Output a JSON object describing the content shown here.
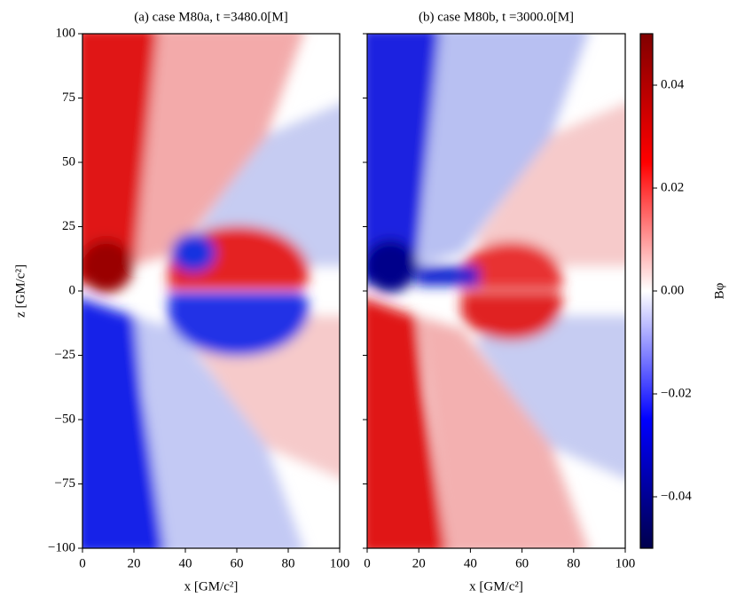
{
  "chart_data": [
    {
      "type": "heatmap",
      "title": "(a) case M80a, t =3480.0[M]",
      "xlabel": "x [GM/c²]",
      "ylabel": "z [GM/c²]",
      "xlim": [
        0,
        100
      ],
      "ylim": [
        -100,
        100
      ],
      "xticks": [
        0,
        20,
        40,
        60,
        80,
        100
      ],
      "yticks": [
        {
          "value": -100,
          "label": "−100"
        },
        {
          "value": -75,
          "label": "−75"
        },
        {
          "value": -50,
          "label": "−50"
        },
        {
          "value": -25,
          "label": "−25"
        },
        0,
        25,
        50,
        75,
        100
      ],
      "ytick_labels": true
    },
    {
      "type": "heatmap",
      "title": "(b) case M80b, t =3000.0[M]",
      "xlabel": "x [GM/c²]",
      "xlim": [
        0,
        100
      ],
      "ylim": [
        -100,
        100
      ],
      "xticks": [
        0,
        20,
        40,
        60,
        80,
        100
      ],
      "yticks": [
        -100,
        -75,
        -50,
        -25,
        0,
        25,
        50,
        75,
        100
      ],
      "ytick_labels": false,
      "colorbar": {
        "label": "Bφ",
        "clim": [
          -0.05,
          0.05
        ],
        "cmap": [
          "#00004c",
          "#0000ff",
          "#ffffff",
          "#ff0000",
          "#800000"
        ],
        "ticks": [
          {
            "value": -0.04,
            "label": "−0.04"
          },
          {
            "value": -0.02,
            "label": "−0.02"
          },
          {
            "value": 0,
            "label": "0.00"
          },
          0.02,
          0.04
        ]
      }
    }
  ]
}
